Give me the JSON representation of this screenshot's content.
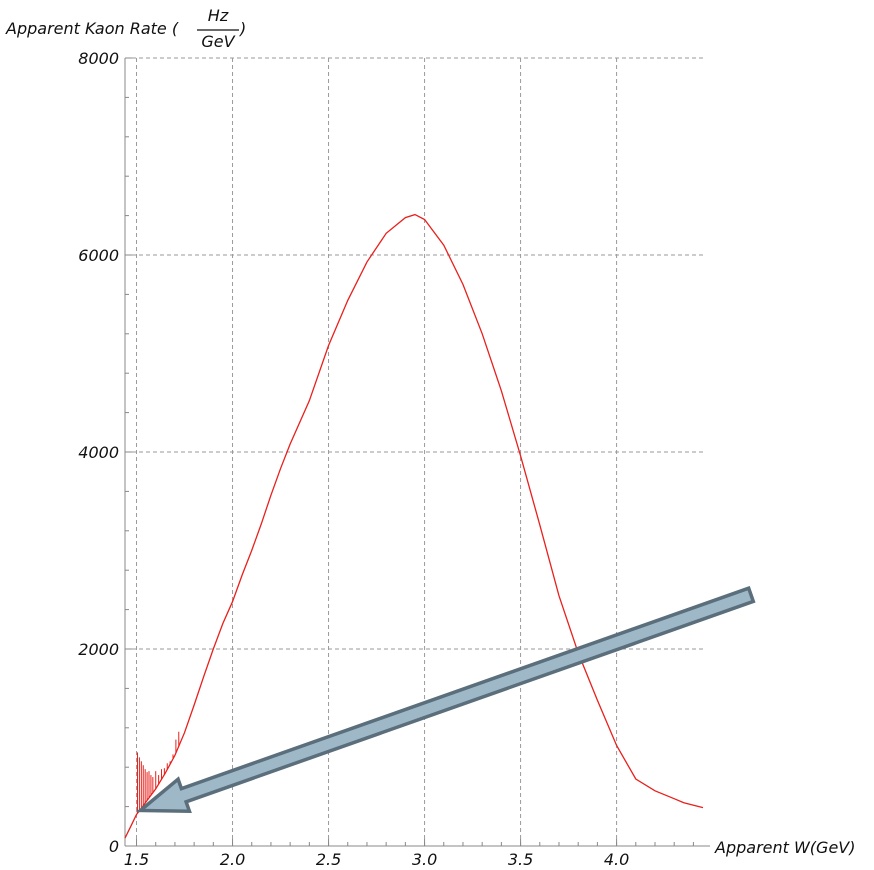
{
  "chart_data": {
    "type": "line",
    "title": "",
    "ylabel": {
      "prefix": "Apparent Kaon Rate (",
      "frac_num": "Hz",
      "frac_den": "GeV",
      "suffix": ")"
    },
    "xlabel": "Apparent W(GeV)",
    "xlim": [
      1.44,
      4.45
    ],
    "ylim": [
      0,
      8000
    ],
    "x_ticks": [
      1.5,
      2.0,
      2.5,
      3.0,
      3.5,
      4.0
    ],
    "x_tick_labels": [
      "1.5",
      "2.0",
      "2.5",
      "3.0",
      "3.5",
      "4.0"
    ],
    "y_ticks": [
      0,
      2000,
      4000,
      6000,
      8000
    ],
    "y_tick_labels": [
      "0",
      "2000",
      "4000",
      "6000",
      "8000"
    ],
    "grid": true,
    "series": [
      {
        "color": "#e8201c",
        "x": [
          1.44,
          1.47,
          1.5,
          1.52,
          1.55,
          1.6,
          1.65,
          1.7,
          1.75,
          1.8,
          1.85,
          1.9,
          1.95,
          2.0,
          2.05,
          2.1,
          2.15,
          2.2,
          2.25,
          2.3,
          2.4,
          2.5,
          2.6,
          2.7,
          2.8,
          2.9,
          2.95,
          3.0,
          3.1,
          3.2,
          3.3,
          3.4,
          3.5,
          3.6,
          3.7,
          3.8,
          3.9,
          4.0,
          4.1,
          4.2,
          4.3,
          4.35,
          4.45
        ],
        "y": [
          80,
          200,
          320,
          370,
          450,
          580,
          740,
          920,
          1150,
          1430,
          1720,
          2000,
          2260,
          2480,
          2750,
          3000,
          3270,
          3560,
          3830,
          4080,
          4520,
          5080,
          5540,
          5930,
          6220,
          6380,
          6410,
          6360,
          6100,
          5700,
          5200,
          4620,
          3960,
          3260,
          2540,
          1960,
          1480,
          1020,
          680,
          560,
          480,
          440,
          390
        ]
      }
    ],
    "spikes": {
      "x": [
        1.505,
        1.515,
        1.525,
        1.535,
        1.545,
        1.555,
        1.565,
        1.575,
        1.585,
        1.6,
        1.615,
        1.63,
        1.645,
        1.66,
        1.675,
        1.69,
        1.705,
        1.72
      ],
      "y": [
        950,
        900,
        860,
        820,
        780,
        750,
        760,
        720,
        700,
        760,
        720,
        780,
        790,
        840,
        860,
        930,
        1080,
        1160
      ]
    },
    "arrow": {
      "from": [
        4.7,
        2550
      ],
      "to": [
        1.52,
        360
      ],
      "color": "#9fb8c8",
      "outline": "#5a6e7c"
    }
  }
}
